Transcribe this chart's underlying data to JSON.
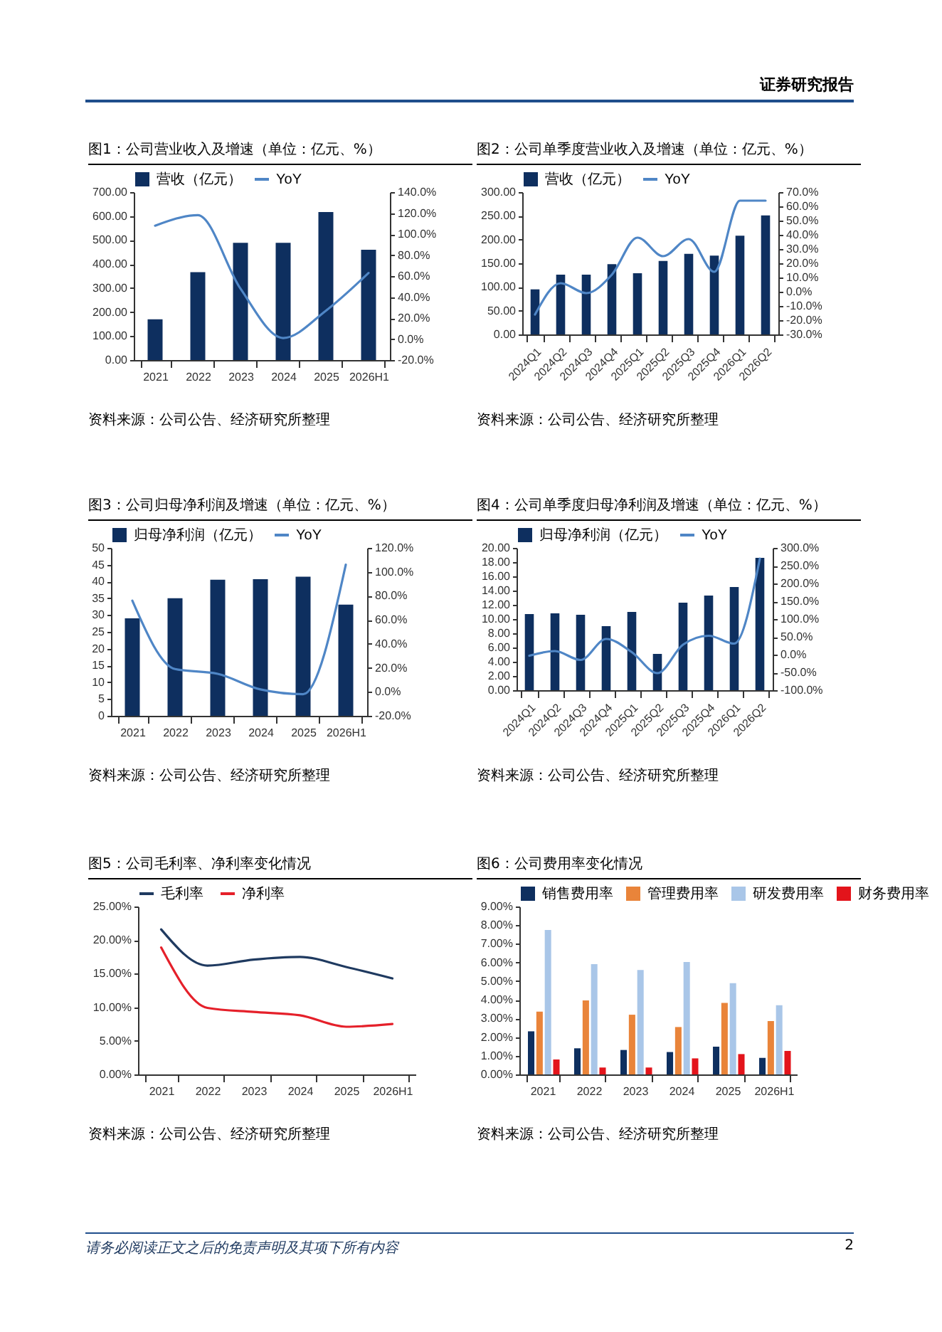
{
  "chart_data": [
    {
      "type": "bar",
      "title": "图1：公司营业收入及增速（单位：亿元、%）",
      "categories": [
        "2021",
        "2022",
        "2023",
        "2024",
        "2025",
        "2026H1"
      ],
      "series": [
        {
          "name": "营收（亿元）",
          "color": "#0e2f5f",
          "values": [
            170,
            366,
            489,
            489,
            617,
            460
          ]
        },
        {
          "name": "YoY",
          "type": "line",
          "axis": "y2",
          "color": "#4f86c6",
          "values": [
            108,
            118,
            48,
            1,
            27,
            63
          ]
        }
      ],
      "ylim": [
        0,
        700
      ],
      "yticks": [
        {
          "value": 0,
          "label": "0.00"
        },
        {
          "value": 100,
          "label": "100.00"
        },
        {
          "value": 200,
          "label": "200.00"
        },
        {
          "value": 300,
          "label": "300.00"
        },
        {
          "value": 400,
          "label": "400.00"
        },
        {
          "value": 500,
          "label": "500.00"
        },
        {
          "value": 600,
          "label": "600.00"
        },
        {
          "value": 700,
          "label": "700.00"
        }
      ],
      "y2lim": [
        -20,
        140
      ],
      "y2ticks": [
        {
          "value": -20,
          "label": "-20.0%"
        },
        {
          "value": 0,
          "label": "0.0%"
        },
        {
          "value": 20,
          "label": "20.0%"
        },
        {
          "value": 40,
          "label": "40.0%"
        },
        {
          "value": 60,
          "label": "60.0%"
        },
        {
          "value": 80,
          "label": "80.0%"
        },
        {
          "value": 100,
          "label": "100.0%"
        },
        {
          "value": 120,
          "label": "120.0%"
        },
        {
          "value": 140,
          "label": "140.0%"
        }
      ],
      "legend": "top",
      "annotations": [
        "资料来源：公司公告、经济研究所整理",
        "证券研究报告"
      ]
    },
    {
      "type": "bar",
      "title": "图2：公司单季度营业收入及增速（单位：亿元、%）",
      "categories": [
        "2024Q1",
        "2024Q2",
        "2024Q3",
        "2024Q4",
        "2025Q1",
        "2025Q2",
        "2025Q3",
        "2025Q4",
        "2026Q1",
        "2026Q2"
      ],
      "series": [
        {
          "name": "营收（亿元）",
          "color": "#0e2f5f",
          "values": [
            95,
            126,
            126,
            148,
            129,
            155,
            170,
            166,
            208,
            251
          ]
        },
        {
          "name": "YoY",
          "type": "line",
          "axis": "y2",
          "color": "#4f86c6",
          "values": [
            -16,
            6,
            -1,
            12,
            38,
            25,
            37,
            14,
            64,
            64
          ]
        }
      ],
      "ylim": [
        0,
        300
      ],
      "yticks": [
        {
          "value": 0,
          "label": "0.00"
        },
        {
          "value": 50,
          "label": "50.00"
        },
        {
          "value": 100,
          "label": "100.00"
        },
        {
          "value": 150,
          "label": "150.00"
        },
        {
          "value": 200,
          "label": "200.00"
        },
        {
          "value": 250,
          "label": "250.00"
        },
        {
          "value": 300,
          "label": "300.00"
        }
      ],
      "y2lim": [
        -30,
        70
      ],
      "y2ticks": [
        {
          "value": -30,
          "label": "-30.0%"
        },
        {
          "value": -20,
          "label": "-20.0%"
        },
        {
          "value": -10,
          "label": "-10.0%"
        },
        {
          "value": 0,
          "label": "0.0%"
        },
        {
          "value": 10,
          "label": "10.0%"
        },
        {
          "value": 20,
          "label": "20.0%"
        },
        {
          "value": 30,
          "label": "30.0%"
        },
        {
          "value": 40,
          "label": "40.0%"
        },
        {
          "value": 50,
          "label": "50.0%"
        },
        {
          "value": 60,
          "label": "60.0%"
        },
        {
          "value": 70,
          "label": "70.0%"
        }
      ],
      "legend": "top",
      "annotations": [
        "资料来源：公司公告、经济研究所整理"
      ]
    },
    {
      "type": "bar",
      "title": "图3：公司归母净利润及增速（单位：亿元、%）",
      "categories": [
        "2021",
        "2022",
        "2023",
        "2024",
        "2025",
        "2026H1"
      ],
      "series": [
        {
          "name": "归母净利润（亿元）",
          "color": "#0e2f5f",
          "values": [
            29.0,
            35.0,
            40.5,
            40.7,
            41.4,
            33.1
          ]
        },
        {
          "name": "YoY",
          "type": "line",
          "axis": "y2",
          "color": "#4f86c6",
          "values": [
            76,
            19,
            15,
            2,
            -2,
            106
          ]
        }
      ],
      "ylim": [
        0,
        50
      ],
      "yticks": [
        0,
        5,
        10,
        15,
        20,
        25,
        30,
        35,
        40,
        45,
        50
      ],
      "y2lim": [
        -20,
        120
      ],
      "y2ticks": [
        {
          "value": -20,
          "label": "-20.0%"
        },
        {
          "value": 0,
          "label": "0.0%"
        },
        {
          "value": 20,
          "label": "20.0%"
        },
        {
          "value": 40,
          "label": "40.0%"
        },
        {
          "value": 60,
          "label": "60.0%"
        },
        {
          "value": 80,
          "label": "80.0%"
        },
        {
          "value": 100,
          "label": "100.0%"
        },
        {
          "value": 120,
          "label": "120.0%"
        }
      ],
      "legend": "top",
      "annotations": [
        "资料来源：公司公告、经济研究所整理"
      ]
    },
    {
      "type": "bar",
      "title": "图4：公司单季度归母净利润及增速（单位：亿元、%）",
      "categories": [
        "2024Q1",
        "2024Q2",
        "2024Q3",
        "2024Q4",
        "2025Q1",
        "2025Q2",
        "2025Q3",
        "2025Q4",
        "2026Q1",
        "2026Q2"
      ],
      "series": [
        {
          "name": "归母净利润（亿元）",
          "color": "#0e2f5f",
          "values": [
            10.7,
            10.8,
            10.6,
            9.0,
            11.0,
            5.1,
            12.3,
            13.3,
            14.5,
            18.6
          ]
        },
        {
          "name": "YoY",
          "type": "line",
          "axis": "y2",
          "color": "#4f86c6",
          "values": [
            -3,
            10,
            -15,
            44,
            7,
            -52,
            28,
            53,
            31,
            270
          ]
        }
      ],
      "ylim": [
        0,
        20
      ],
      "yticks": [
        {
          "value": 0,
          "label": "0.00"
        },
        {
          "value": 2,
          "label": "2.00"
        },
        {
          "value": 4,
          "label": "4.00"
        },
        {
          "value": 6,
          "label": "6.00"
        },
        {
          "value": 8,
          "label": "8.00"
        },
        {
          "value": 10,
          "label": "10.00"
        },
        {
          "value": 12,
          "label": "12.00"
        },
        {
          "value": 14,
          "label": "14.00"
        },
        {
          "value": 16,
          "label": "16.00"
        },
        {
          "value": 18,
          "label": "18.00"
        },
        {
          "value": 20,
          "label": "20.00"
        }
      ],
      "y2lim": [
        -100,
        300
      ],
      "y2ticks": [
        {
          "value": -100,
          "label": "-100.0%"
        },
        {
          "value": -50,
          "label": "-50.0%"
        },
        {
          "value": 0,
          "label": "0.0%"
        },
        {
          "value": 50,
          "label": "50.0%"
        },
        {
          "value": 100,
          "label": "100.0%"
        },
        {
          "value": 150,
          "label": "150.0%"
        },
        {
          "value": 200,
          "label": "200.0%"
        },
        {
          "value": 250,
          "label": "250.0%"
        },
        {
          "value": 300,
          "label": "300.0%"
        }
      ],
      "legend": "top",
      "annotations": [
        "资料来源：公司公告、经济研究所整理"
      ]
    },
    {
      "type": "line",
      "title": "图5：公司毛利率、净利率变化情况",
      "categories": [
        "2021",
        "2022",
        "2023",
        "2024",
        "2025",
        "2026H1"
      ],
      "series": [
        {
          "name": "毛利率",
          "color": "#1f3a60",
          "values": [
            21.6,
            16.2,
            17.1,
            17.5,
            16.0,
            14.3
          ]
        },
        {
          "name": "净利率",
          "color": "#e5202a",
          "values": [
            18.9,
            9.9,
            9.3,
            8.8,
            7.1,
            7.5
          ]
        }
      ],
      "ylim": [
        0,
        25
      ],
      "yticks": [
        {
          "value": 0,
          "label": "0.00%"
        },
        {
          "value": 5,
          "label": "5.00%"
        },
        {
          "value": 10,
          "label": "10.00%"
        },
        {
          "value": 15,
          "label": "15.00%"
        },
        {
          "value": 20,
          "label": "20.00%"
        },
        {
          "value": 25,
          "label": "25.00%"
        }
      ],
      "legend": "top",
      "annotations": [
        "资料来源：公司公告、经济研究所整理"
      ]
    },
    {
      "type": "bar",
      "title": "图6：公司费用率变化情况",
      "categories": [
        "2021",
        "2022",
        "2023",
        "2024",
        "2025",
        "2026H1"
      ],
      "series": [
        {
          "name": "销售费用率",
          "color": "#0e2f5f",
          "values": [
            2.31,
            1.4,
            1.31,
            1.2,
            1.49,
            0.89
          ]
        },
        {
          "name": "管理费用率",
          "color": "#e9843a",
          "values": [
            3.37,
            3.97,
            3.2,
            2.54,
            3.83,
            2.86
          ]
        },
        {
          "name": "研发费用率",
          "color": "#a9c6e8",
          "values": [
            7.74,
            5.91,
            5.6,
            6.03,
            4.89,
            3.71
          ]
        },
        {
          "name": "财务费用率",
          "color": "#e3141b",
          "values": [
            0.8,
            0.37,
            0.37,
            0.86,
            1.09,
            1.26
          ]
        }
      ],
      "ylim": [
        0,
        9
      ],
      "yticks": [
        {
          "value": 0,
          "label": "0.00%"
        },
        {
          "value": 1,
          "label": "1.00%"
        },
        {
          "value": 2,
          "label": "2.00%"
        },
        {
          "value": 3,
          "label": "3.00%"
        },
        {
          "value": 4,
          "label": "4.00%"
        },
        {
          "value": 5,
          "label": "5.00%"
        },
        {
          "value": 6,
          "label": "6.00%"
        },
        {
          "value": 7,
          "label": "7.00%"
        },
        {
          "value": 8,
          "label": "8.00%"
        },
        {
          "value": 9,
          "label": "9.00%"
        }
      ],
      "legend": "top",
      "annotations": [
        "资料来源：公司公告、经济研究所整理",
        "请务必阅读正文之后的免责声明及其项下所有内容",
        "2"
      ]
    }
  ]
}
